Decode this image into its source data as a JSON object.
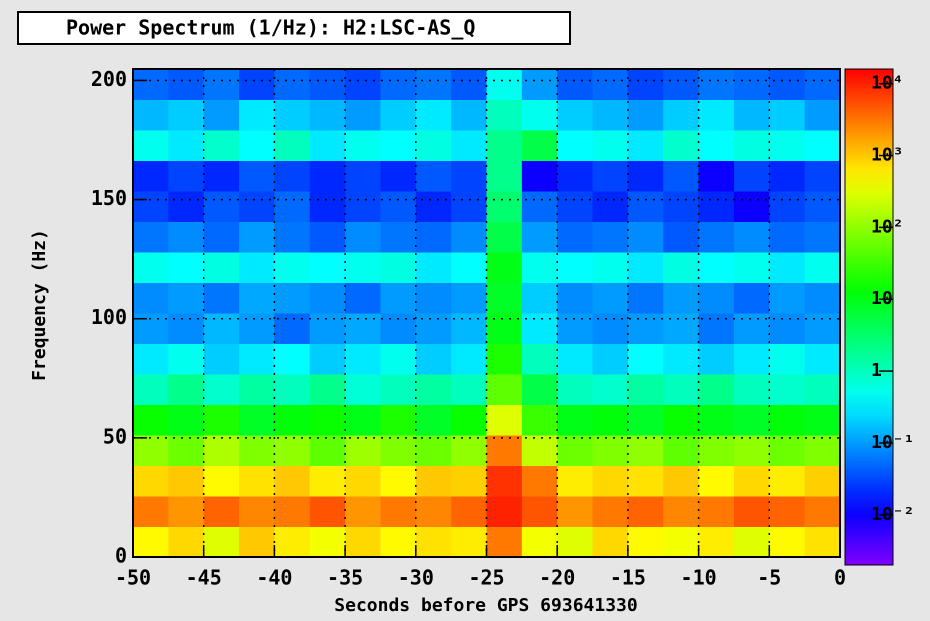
{
  "chart_data": {
    "type": "heatmap",
    "title": "Power Spectrum (1/Hz):  H2:LSC-AS_Q",
    "x_label": "Seconds before GPS 693641330",
    "y_label": "Frequency (Hz)",
    "xlim": [
      -50,
      0
    ],
    "ylim": [
      0,
      204.8
    ],
    "xticks": [
      -50,
      -45,
      -40,
      -35,
      -30,
      -25,
      -20,
      -15,
      -10,
      -5,
      0
    ],
    "yticks": [
      0,
      50,
      100,
      150,
      200
    ],
    "grid": true,
    "colormap": "rainbow",
    "zlog": true,
    "zlim": [
      0.002,
      16000
    ],
    "zticks": [
      {
        "value": 0.01,
        "label": "10⁻²"
      },
      {
        "value": 0.1,
        "label": "10⁻¹"
      },
      1,
      10,
      {
        "value": 100,
        "label": "10²"
      },
      {
        "value": 1000,
        "label": "10³"
      },
      {
        "value": 10000,
        "label": "10⁴"
      }
    ],
    "xbins": [
      -50,
      -47.5,
      -45,
      -42.5,
      -40,
      -37.5,
      -35,
      -32.5,
      -30,
      -27.5,
      -25,
      -22.5,
      -20,
      -17.5,
      -15,
      -12.5,
      -10,
      -7.5,
      -5,
      -2.5,
      0
    ],
    "ybins": [
      0,
      12.8,
      25.6,
      38.4,
      51.2,
      64,
      76.8,
      89.6,
      102.4,
      115.2,
      128,
      140.8,
      153.6,
      166.4,
      179.2,
      192,
      204.8
    ],
    "z": [
      [
        500,
        800,
        300,
        1000,
        600,
        400,
        800,
        500,
        700,
        600,
        3000,
        400,
        300,
        800,
        500,
        400,
        600,
        300,
        500,
        700
      ],
      [
        3000,
        2000,
        4000,
        2500,
        3000,
        5000,
        2000,
        3000,
        2500,
        4000,
        10000,
        5000,
        2000,
        3000,
        4000,
        2500,
        3000,
        5000,
        4000,
        3000
      ],
      [
        800,
        1000,
        500,
        700,
        1000,
        600,
        800,
        500,
        1000,
        900,
        8000,
        3000,
        600,
        800,
        700,
        1000,
        500,
        800,
        600,
        900
      ],
      [
        100,
        60,
        150,
        80,
        100,
        50,
        120,
        80,
        60,
        100,
        3000,
        200,
        60,
        80,
        100,
        50,
        80,
        100,
        60,
        80
      ],
      [
        15,
        10,
        20,
        8,
        12,
        15,
        10,
        20,
        8,
        15,
        300,
        30,
        10,
        12,
        8,
        15,
        10,
        8,
        12,
        10
      ],
      [
        1,
        2,
        0.8,
        1.5,
        1,
        2,
        0.7,
        1,
        1.5,
        1,
        50,
        5,
        1,
        0.8,
        1.5,
        1,
        2,
        1,
        0.8,
        1
      ],
      [
        0.3,
        0.5,
        0.2,
        0.3,
        0.4,
        0.2,
        0.3,
        0.5,
        0.2,
        0.3,
        20,
        1,
        0.3,
        0.2,
        0.4,
        0.3,
        0.2,
        0.3,
        0.5,
        0.3
      ],
      [
        0.1,
        0.08,
        0.15,
        0.1,
        0.05,
        0.1,
        0.12,
        0.08,
        0.1,
        0.15,
        10,
        0.3,
        0.1,
        0.08,
        0.1,
        0.12,
        0.06,
        0.1,
        0.08,
        0.1
      ],
      [
        0.08,
        0.1,
        0.06,
        0.12,
        0.1,
        0.08,
        0.05,
        0.1,
        0.08,
        0.1,
        8,
        0.2,
        0.08,
        0.1,
        0.06,
        0.1,
        0.08,
        0.05,
        0.1,
        0.08
      ],
      [
        0.5,
        0.4,
        0.6,
        0.3,
        0.5,
        0.4,
        0.5,
        0.6,
        0.3,
        0.4,
        10,
        0.5,
        0.4,
        0.5,
        0.3,
        0.6,
        0.4,
        0.5,
        0.3,
        0.5
      ],
      [
        0.06,
        0.08,
        0.05,
        0.1,
        0.06,
        0.04,
        0.08,
        0.06,
        0.05,
        0.08,
        5,
        0.1,
        0.05,
        0.06,
        0.08,
        0.04,
        0.06,
        0.08,
        0.05,
        0.06
      ],
      [
        0.03,
        0.02,
        0.04,
        0.03,
        0.05,
        0.02,
        0.03,
        0.04,
        0.02,
        0.03,
        3,
        0.05,
        0.03,
        0.02,
        0.04,
        0.03,
        0.02,
        0.01,
        0.03,
        0.04
      ],
      [
        0.02,
        0.03,
        0.02,
        0.04,
        0.03,
        0.02,
        0.03,
        0.02,
        0.04,
        0.03,
        2,
        0.01,
        0.02,
        0.03,
        0.02,
        0.04,
        0.01,
        0.03,
        0.02,
        0.03
      ],
      [
        0.5,
        0.3,
        0.8,
        0.4,
        1,
        0.3,
        0.5,
        0.4,
        0.6,
        0.3,
        2,
        5,
        0.4,
        0.5,
        0.3,
        0.8,
        0.4,
        0.6,
        0.5,
        0.4
      ],
      [
        0.15,
        0.2,
        0.1,
        0.3,
        0.2,
        0.15,
        0.1,
        0.2,
        0.3,
        0.15,
        1,
        0.5,
        0.2,
        0.15,
        0.1,
        0.2,
        0.3,
        0.15,
        0.2,
        0.1
      ],
      [
        0.05,
        0.04,
        0.06,
        0.03,
        0.05,
        0.04,
        0.03,
        0.05,
        0.06,
        0.04,
        0.5,
        0.1,
        0.04,
        0.05,
        0.03,
        0.04,
        0.06,
        0.05,
        0.04,
        0.05
      ]
    ]
  }
}
